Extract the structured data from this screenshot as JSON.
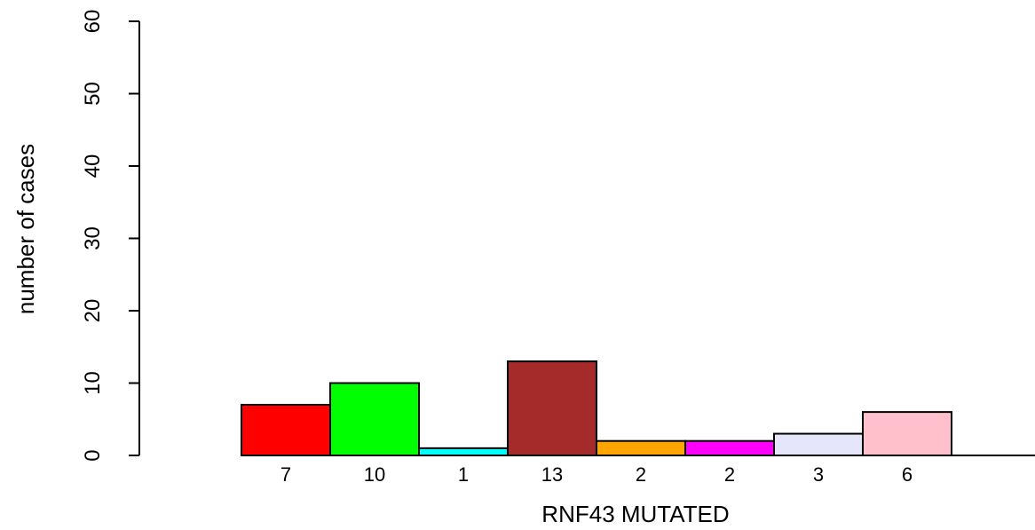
{
  "chart_data": {
    "type": "bar",
    "categories": [
      "",
      "",
      "",
      "",
      "",
      "",
      "",
      ""
    ],
    "values": [
      7,
      10,
      1,
      13,
      2,
      2,
      3,
      6
    ],
    "bar_labels": [
      "7",
      "10",
      "1",
      "13",
      "2",
      "2",
      "3",
      "6"
    ],
    "colors": [
      "#ff0000",
      "#00ff00",
      "#00ffff",
      "#a52a2a",
      "#ffa500",
      "#ff00ff",
      "#e6e6fa",
      "#ffc0cb"
    ],
    "title": "",
    "xlabel": "RNF43 MUTATED",
    "ylabel": "number of cases",
    "ylim": [
      0,
      60
    ],
    "yticks": [
      "0",
      "10",
      "20",
      "30",
      "40",
      "50",
      "60"
    ],
    "grid": false,
    "legend": "none"
  }
}
